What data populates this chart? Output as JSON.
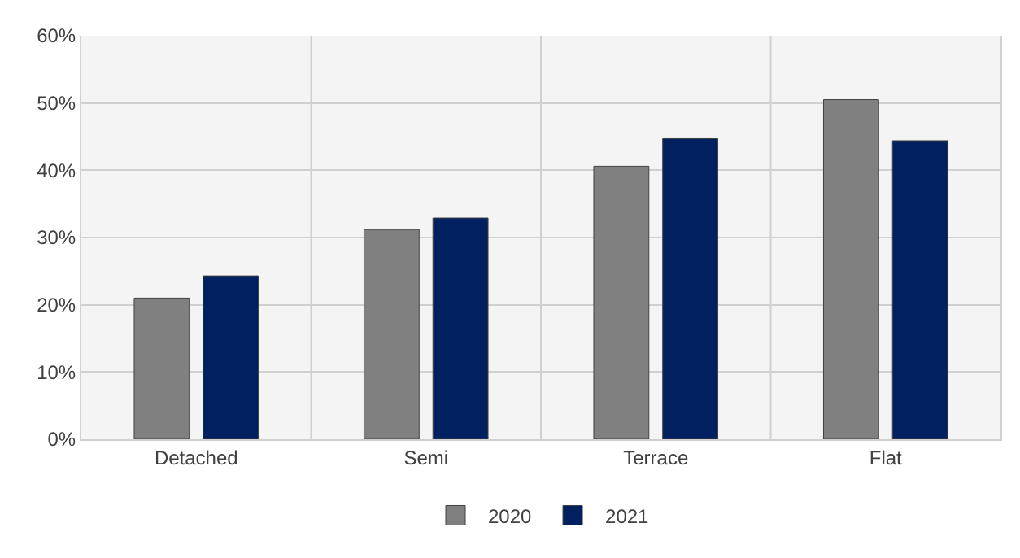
{
  "chart_data": {
    "type": "bar",
    "categories": [
      "Detached",
      "Semi",
      "Terrace",
      "Flat"
    ],
    "series": [
      {
        "name": "2020",
        "color": "#808080",
        "values": [
          21.0,
          31.2,
          40.6,
          50.5
        ]
      },
      {
        "name": "2021",
        "color": "#002060",
        "values": [
          24.3,
          32.9,
          44.7,
          44.4
        ]
      }
    ],
    "ylim": [
      0,
      60
    ],
    "yticks": [
      {
        "value": 0,
        "label": "0%"
      },
      {
        "value": 10,
        "label": "10%"
      },
      {
        "value": 20,
        "label": "20%"
      },
      {
        "value": 30,
        "label": "30%"
      },
      {
        "value": 40,
        "label": "40%"
      },
      {
        "value": 50,
        "label": "50%"
      },
      {
        "value": 60,
        "label": "60%"
      }
    ],
    "grid": true,
    "legend": "bottom"
  }
}
